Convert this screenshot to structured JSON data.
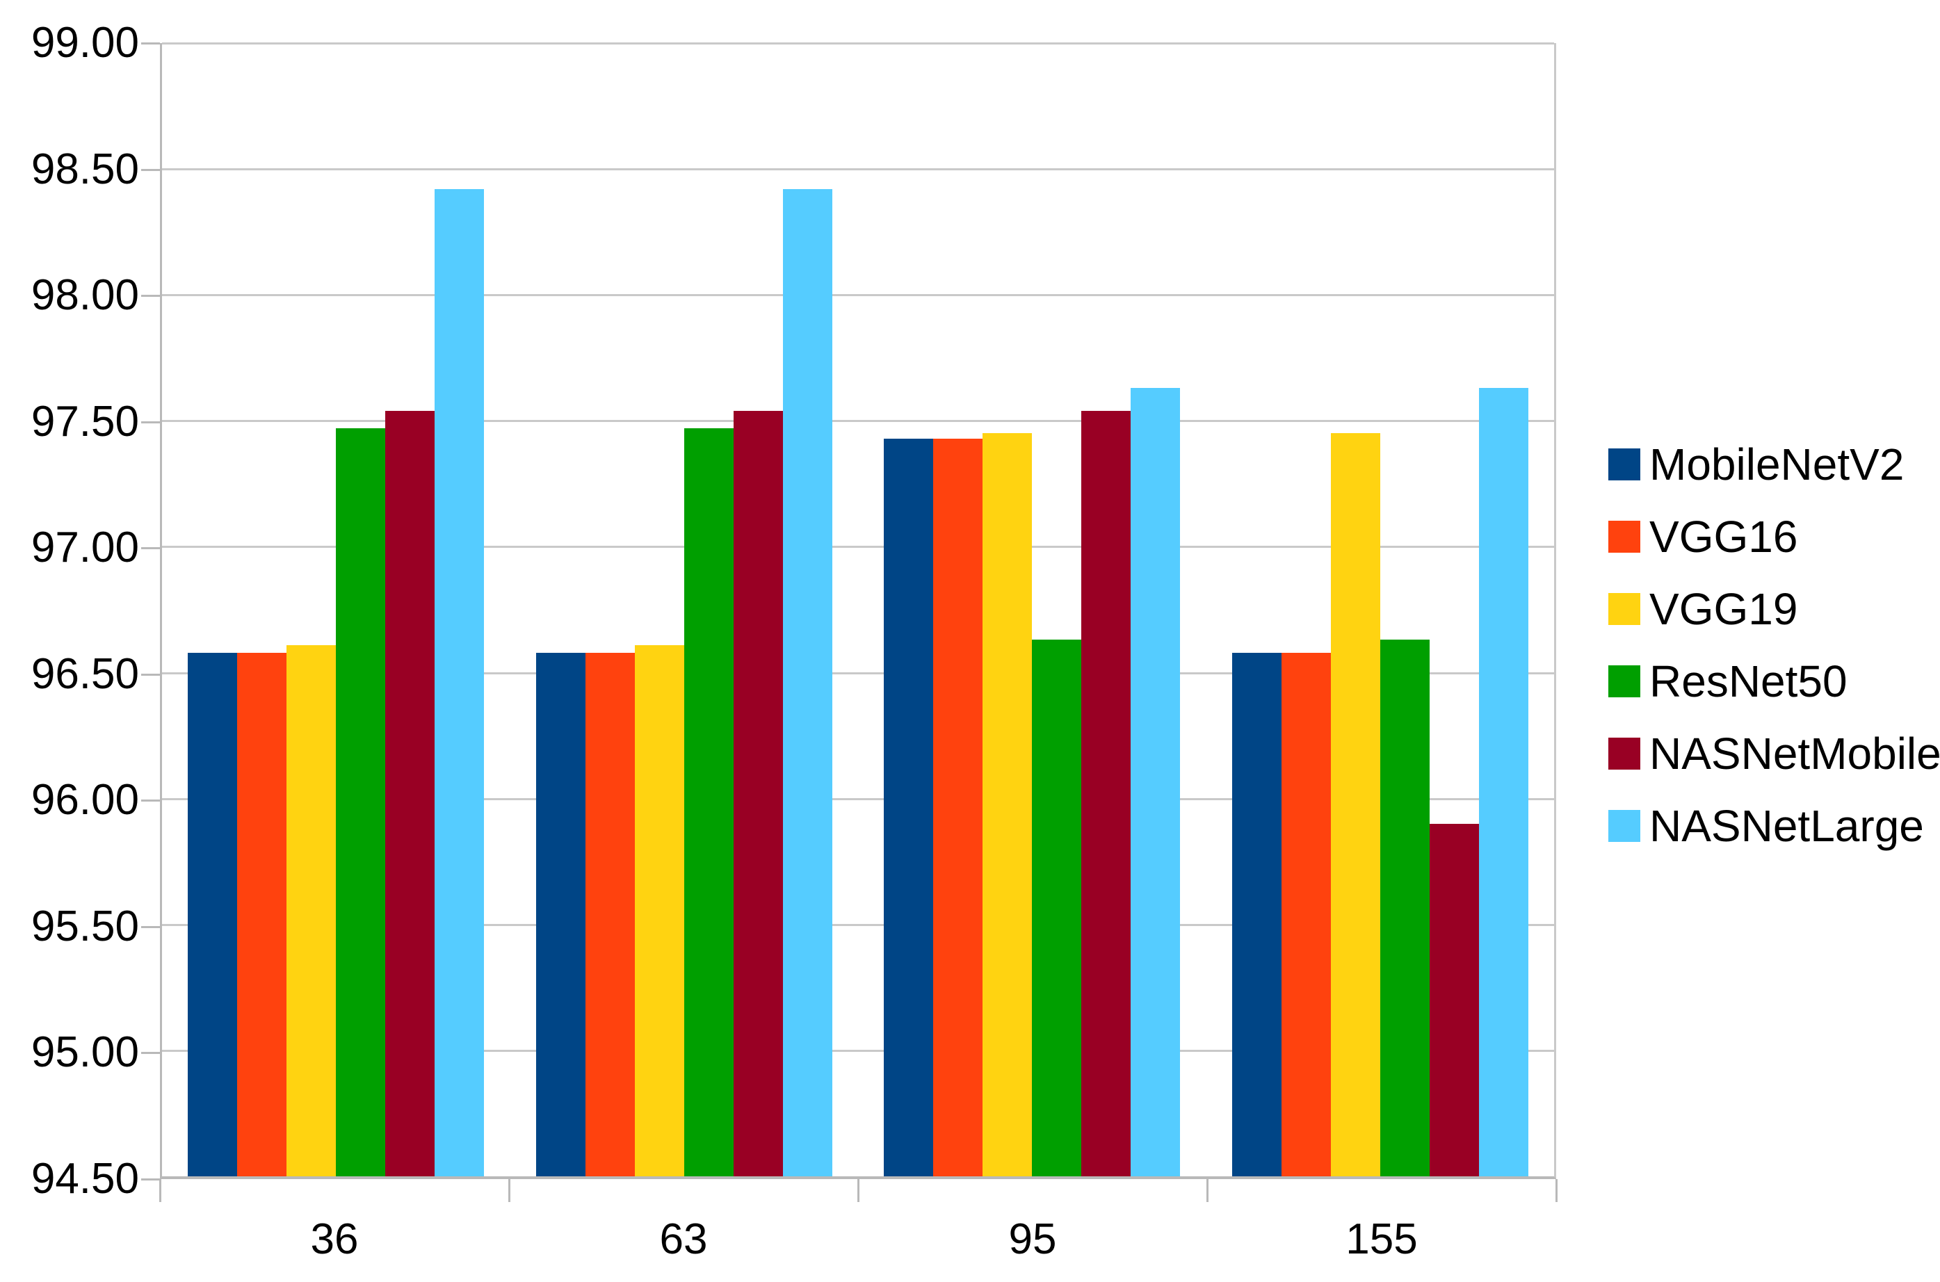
{
  "chart_data": {
    "type": "bar",
    "title": "",
    "categories": [
      "36",
      "63",
      "95",
      "155"
    ],
    "series": [
      {
        "name": "MobileNetV2",
        "color": "#004586",
        "values": [
          96.58,
          96.58,
          97.43,
          96.58
        ]
      },
      {
        "name": "VGG16",
        "color": "#FF420E",
        "values": [
          96.58,
          96.58,
          97.43,
          96.58
        ]
      },
      {
        "name": "VGG19",
        "color": "#FFD311",
        "values": [
          96.61,
          96.61,
          97.45,
          97.45
        ]
      },
      {
        "name": "ResNet50",
        "color": "#009F00",
        "values": [
          97.47,
          97.47,
          96.63,
          96.63
        ]
      },
      {
        "name": "NASNetMobile",
        "color": "#990024",
        "values": [
          97.54,
          97.54,
          97.54,
          95.9
        ]
      },
      {
        "name": "NASNetLarge",
        "color": "#55CCFF",
        "values": [
          98.42,
          98.42,
          97.63,
          97.63
        ]
      }
    ],
    "ylim": [
      94.5,
      99.0
    ],
    "ytick_step": 0.5,
    "ytick_labels": [
      "99.00",
      "98.50",
      "98.00",
      "97.50",
      "97.00",
      "96.50",
      "96.00",
      "95.50",
      "95.00",
      "94.50"
    ],
    "xlabel": "",
    "ylabel": "",
    "grid": "horizontal",
    "legend_position": "right"
  },
  "colors": {
    "background": "#ffffff",
    "gridline": "#c9c9c9",
    "axis": "#b9b9b9",
    "text": "#000000"
  }
}
